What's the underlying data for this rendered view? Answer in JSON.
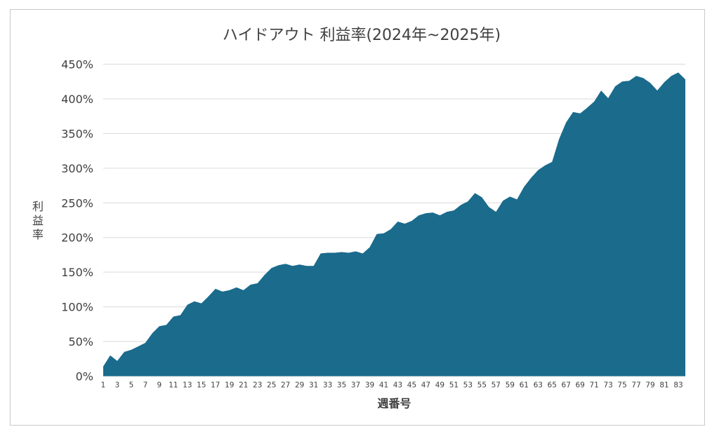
{
  "chart_data": {
    "type": "area",
    "title": "ハイドアウト 利益率(2024年~2025年)",
    "xlabel": "週番号",
    "ylabel": "利益率",
    "ylim": [
      0,
      450
    ],
    "yticks": [
      0,
      50,
      100,
      150,
      200,
      250,
      300,
      350,
      400,
      450
    ],
    "y_unit": "%",
    "grid": true,
    "color": "#1a6b8c",
    "x": [
      1,
      2,
      3,
      4,
      5,
      6,
      7,
      8,
      9,
      10,
      11,
      12,
      13,
      14,
      15,
      16,
      17,
      18,
      19,
      20,
      21,
      22,
      23,
      24,
      25,
      26,
      27,
      28,
      29,
      30,
      31,
      32,
      33,
      34,
      35,
      36,
      37,
      38,
      39,
      40,
      41,
      42,
      43,
      44,
      45,
      46,
      47,
      48,
      49,
      50,
      51,
      52,
      53,
      54,
      55,
      56,
      57,
      58,
      59,
      60,
      61,
      62,
      63,
      64,
      65,
      66,
      67,
      68,
      69,
      70,
      71,
      72,
      73,
      74,
      75,
      76,
      77,
      78,
      79,
      80,
      81,
      82,
      83,
      84
    ],
    "xticks": [
      1,
      3,
      5,
      7,
      9,
      11,
      13,
      15,
      17,
      19,
      21,
      23,
      25,
      27,
      29,
      31,
      33,
      35,
      37,
      39,
      41,
      43,
      45,
      47,
      49,
      51,
      53,
      55,
      57,
      59,
      61,
      63,
      65,
      67,
      69,
      71,
      73,
      75,
      77,
      79,
      81,
      83
    ],
    "series": [
      {
        "values": [
          14,
          30,
          22,
          35,
          38,
          43,
          48,
          62,
          72,
          74,
          86,
          88,
          103,
          108,
          105,
          115,
          126,
          122,
          124,
          128,
          124,
          132,
          134,
          146,
          156,
          160,
          162,
          159,
          161,
          159,
          159,
          177,
          178,
          178,
          179,
          178,
          180,
          177,
          186,
          205,
          206,
          212,
          223,
          220,
          224,
          232,
          235,
          236,
          232,
          237,
          239,
          247,
          252,
          264,
          258,
          244,
          237,
          253,
          259,
          255,
          273,
          286,
          297,
          304,
          309,
          342,
          366,
          381,
          379,
          387,
          396,
          412,
          401,
          418,
          425,
          426,
          433,
          430,
          423,
          412,
          424,
          433,
          438,
          428
        ]
      }
    ]
  }
}
